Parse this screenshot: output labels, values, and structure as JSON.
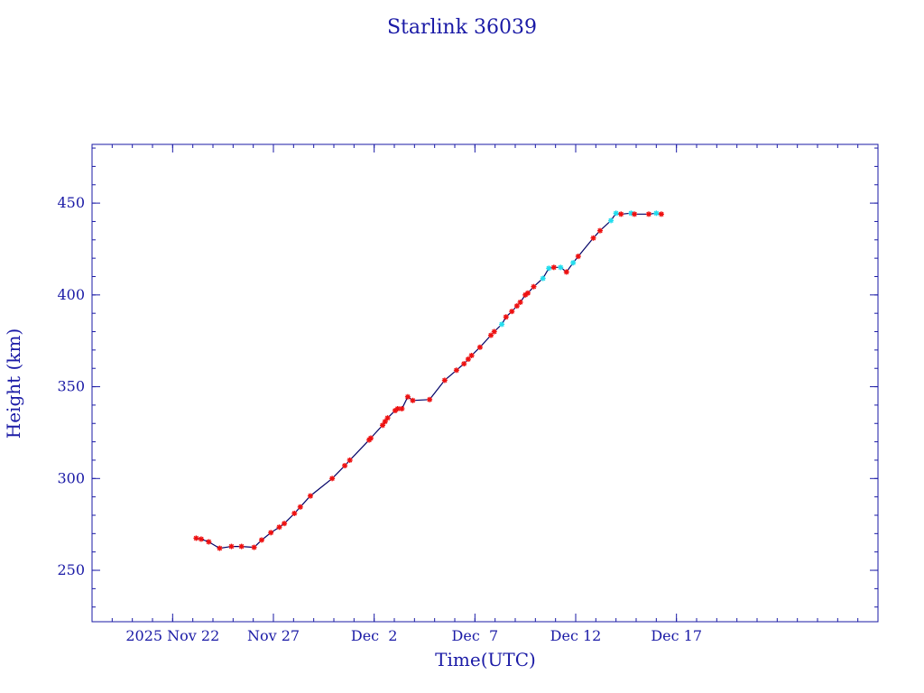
{
  "chart_data": {
    "type": "scatter",
    "title": "Starlink 36039",
    "xlabel": "Time(UTC)",
    "ylabel": "Height (km)",
    "xlim": [
      "2025-11-18",
      "2025-12-27"
    ],
    "ylim": [
      222,
      482
    ],
    "x_ticks": [
      {
        "date": "2025-11-22",
        "label": "2025 Nov 22"
      },
      {
        "date": "2025-11-27",
        "label": "Nov 27"
      },
      {
        "date": "2025-12-02",
        "label": "Dec  2"
      },
      {
        "date": "2025-12-07",
        "label": "Dec  7"
      },
      {
        "date": "2025-12-12",
        "label": "Dec 12"
      },
      {
        "date": "2025-12-17",
        "label": "Dec 17"
      }
    ],
    "y_ticks": [
      250,
      300,
      350,
      400,
      450
    ],
    "grid": false,
    "colors": {
      "axes": "#1a1aa6",
      "line": "#000066",
      "marker_primary": "#ee1111",
      "marker_secondary": "#22ddee"
    },
    "series": [
      {
        "marker": "red-star",
        "points": [
          [
            "2025-11-23 04:00",
            267.5
          ],
          [
            "2025-11-23 10:00",
            267.0
          ],
          [
            "2025-11-23 19:00",
            265.5
          ],
          [
            "2025-11-24 08:00",
            262.0
          ],
          [
            "2025-11-24 22:00",
            263.0
          ],
          [
            "2025-11-25 10:00",
            263.0
          ],
          [
            "2025-11-26 01:00",
            262.5
          ],
          [
            "2025-11-26 10:00",
            266.5
          ],
          [
            "2025-11-26 21:00",
            270.5
          ],
          [
            "2025-11-27 07:00",
            273.5
          ],
          [
            "2025-11-27 13:00",
            275.5
          ],
          [
            "2025-11-28 01:00",
            281.0
          ],
          [
            "2025-11-28 08:00",
            284.5
          ],
          [
            "2025-11-28 20:00",
            290.5
          ],
          [
            "2025-11-29 22:00",
            300.0
          ],
          [
            "2025-11-30 13:00",
            307.0
          ],
          [
            "2025-11-30 19:00",
            310.0
          ],
          [
            "2025-12-01 18:00",
            321.0
          ],
          [
            "2025-12-01 20:00",
            322.0
          ],
          [
            "2025-12-02 10:00",
            329.0
          ],
          [
            "2025-12-02 13:00",
            331.0
          ],
          [
            "2025-12-02 16:00",
            333.0
          ],
          [
            "2025-12-03 01:00",
            337.0
          ],
          [
            "2025-12-03 04:00",
            338.0
          ],
          [
            "2025-12-03 09:00",
            338.0
          ],
          [
            "2025-12-03 16:00",
            344.5
          ],
          [
            "2025-12-03 22:00",
            342.5
          ],
          [
            "2025-12-04 18:00",
            343.0
          ],
          [
            "2025-12-05 12:00",
            353.5
          ],
          [
            "2025-12-06 02:00",
            359.0
          ],
          [
            "2025-12-06 11:00",
            362.5
          ],
          [
            "2025-12-06 16:00",
            365.0
          ],
          [
            "2025-12-06 20:00",
            367.0
          ],
          [
            "2025-12-07 06:00",
            371.5
          ],
          [
            "2025-12-07 19:00",
            378.0
          ],
          [
            "2025-12-07 23:00",
            380.0
          ],
          [
            "2025-12-08 13:00",
            388.0
          ],
          [
            "2025-12-08 20:00",
            391.0
          ],
          [
            "2025-12-09 02:00",
            394.0
          ],
          [
            "2025-12-09 06:00",
            396.0
          ],
          [
            "2025-12-09 12:00",
            400.0
          ],
          [
            "2025-12-09 15:00",
            401.0
          ],
          [
            "2025-12-09 22:00",
            404.5
          ],
          [
            "2025-12-10 22:00",
            415.0
          ],
          [
            "2025-12-11 13:00",
            412.5
          ],
          [
            "2025-12-12 03:00",
            421.0
          ],
          [
            "2025-12-12 21:00",
            431.0
          ],
          [
            "2025-12-13 05:00",
            435.0
          ],
          [
            "2025-12-14 06:00",
            444.0
          ],
          [
            "2025-12-14 22:00",
            444.0
          ],
          [
            "2025-12-15 15:00",
            444.0
          ],
          [
            "2025-12-16 06:00",
            444.0
          ]
        ]
      },
      {
        "marker": "cyan-star",
        "points": [
          [
            "2025-12-08 08:00",
            384.0
          ],
          [
            "2025-12-10 09:00",
            409.0
          ],
          [
            "2025-12-10 16:00",
            414.5
          ],
          [
            "2025-12-11 06:00",
            415.0
          ],
          [
            "2025-12-11 21:00",
            417.5
          ],
          [
            "2025-12-13 18:00",
            440.5
          ],
          [
            "2025-12-14 00:00",
            444.5
          ],
          [
            "2025-12-14 18:00",
            444.5
          ],
          [
            "2025-12-16 00:00",
            444.5
          ]
        ]
      }
    ]
  }
}
